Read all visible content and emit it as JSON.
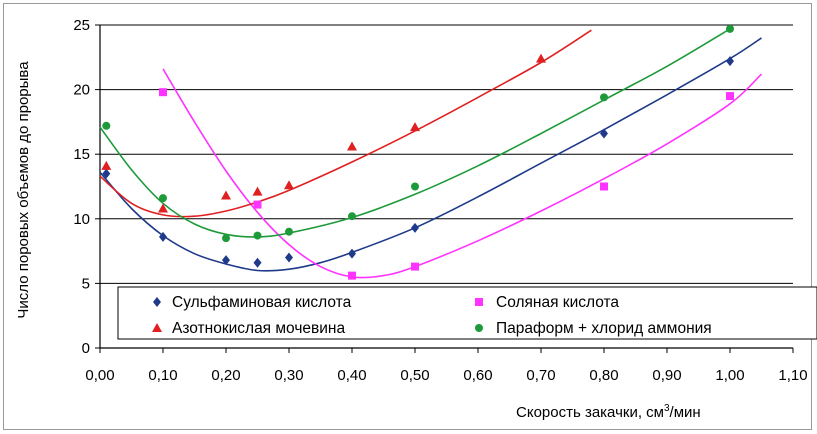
{
  "chart_data": {
    "type": "scatter",
    "ylabel": "Число поровых объемов до прорыва",
    "xlabel_main": "Скорость закачки, см",
    "xlabel_sup": "3",
    "xlabel_tail": "/мин",
    "xlim": [
      0.0,
      1.1
    ],
    "ylim": [
      0,
      25
    ],
    "x_ticks": [
      "0,00",
      "0,10",
      "0,20",
      "0,30",
      "0,40",
      "0,50",
      "0,60",
      "0,70",
      "0,80",
      "0,90",
      "1,00",
      "1,10"
    ],
    "y_ticks": [
      "0",
      "5",
      "10",
      "15",
      "20",
      "25"
    ],
    "grid": "horizontal",
    "legend_position": "bottom-center",
    "series": [
      {
        "name": "Сульфаминовая кислота",
        "color": "#1f3a8a",
        "marker": "diamond",
        "x": [
          0.01,
          0.1,
          0.2,
          0.25,
          0.3,
          0.4,
          0.5,
          0.8,
          1.0
        ],
        "y": [
          13.5,
          8.6,
          6.8,
          6.6,
          7.0,
          7.3,
          9.3,
          16.6,
          22.2
        ],
        "trend": [
          [
            0.0,
            13.6
          ],
          [
            0.05,
            10.8
          ],
          [
            0.1,
            8.7
          ],
          [
            0.15,
            7.3
          ],
          [
            0.2,
            6.5
          ],
          [
            0.25,
            6.0
          ],
          [
            0.3,
            6.1
          ],
          [
            0.35,
            6.6
          ],
          [
            0.4,
            7.4
          ],
          [
            0.5,
            9.3
          ],
          [
            0.6,
            11.7
          ],
          [
            0.7,
            14.3
          ],
          [
            0.8,
            16.9
          ],
          [
            0.9,
            19.6
          ],
          [
            1.0,
            22.4
          ],
          [
            1.05,
            24.0
          ]
        ]
      },
      {
        "name": "Соляная кислота",
        "color": "#ff33ff",
        "marker": "square",
        "x": [
          0.1,
          0.25,
          0.4,
          0.5,
          0.8,
          1.0
        ],
        "y": [
          19.8,
          11.1,
          5.6,
          6.3,
          12.5,
          19.5
        ],
        "trend": [
          [
            0.1,
            21.6
          ],
          [
            0.15,
            17.5
          ],
          [
            0.2,
            13.7
          ],
          [
            0.25,
            10.5
          ],
          [
            0.3,
            8.0
          ],
          [
            0.35,
            6.3
          ],
          [
            0.4,
            5.5
          ],
          [
            0.45,
            5.6
          ],
          [
            0.5,
            6.3
          ],
          [
            0.6,
            8.3
          ],
          [
            0.7,
            10.6
          ],
          [
            0.8,
            13.1
          ],
          [
            0.9,
            15.8
          ],
          [
            1.0,
            18.9
          ],
          [
            1.05,
            21.2
          ]
        ]
      },
      {
        "name": "Азотнокислая мочевина",
        "color": "#e02020",
        "marker": "triangle",
        "x": [
          0.01,
          0.1,
          0.2,
          0.25,
          0.3,
          0.4,
          0.5,
          0.7
        ],
        "y": [
          14.1,
          10.8,
          11.8,
          12.1,
          12.6,
          15.6,
          17.1,
          22.4
        ],
        "trend": [
          [
            0.0,
            13.3
          ],
          [
            0.05,
            11.2
          ],
          [
            0.1,
            10.3
          ],
          [
            0.15,
            10.2
          ],
          [
            0.2,
            10.6
          ],
          [
            0.25,
            11.3
          ],
          [
            0.3,
            12.2
          ],
          [
            0.4,
            14.4
          ],
          [
            0.5,
            16.8
          ],
          [
            0.6,
            19.4
          ],
          [
            0.7,
            22.1
          ],
          [
            0.78,
            24.6
          ]
        ]
      },
      {
        "name": "Параформ + хлорид аммония",
        "color": "#1f9a3a",
        "marker": "circle",
        "x": [
          0.01,
          0.1,
          0.2,
          0.25,
          0.3,
          0.4,
          0.5,
          0.8,
          1.0
        ],
        "y": [
          17.2,
          11.6,
          8.5,
          8.7,
          9.0,
          10.2,
          12.5,
          19.4,
          24.7
        ],
        "trend": [
          [
            0.0,
            17.1
          ],
          [
            0.05,
            13.8
          ],
          [
            0.1,
            11.2
          ],
          [
            0.15,
            9.6
          ],
          [
            0.2,
            8.8
          ],
          [
            0.25,
            8.6
          ],
          [
            0.3,
            8.9
          ],
          [
            0.4,
            10.1
          ],
          [
            0.5,
            11.9
          ],
          [
            0.6,
            14.1
          ],
          [
            0.7,
            16.6
          ],
          [
            0.8,
            19.2
          ],
          [
            0.9,
            21.8
          ],
          [
            1.0,
            24.7
          ]
        ]
      }
    ]
  }
}
